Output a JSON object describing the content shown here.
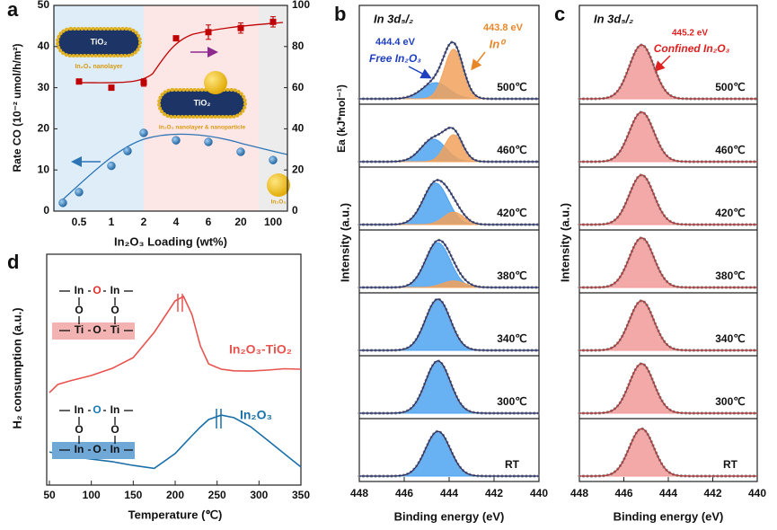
{
  "chart_data": [
    {
      "type": "dual-axis",
      "panel": "a",
      "categories": [
        null,
        "0.5",
        null,
        "1",
        null,
        "2",
        null,
        "4",
        null,
        "6",
        null,
        "20",
        null,
        "100"
      ],
      "series": [
        {
          "color": "#2e75b6",
          "marker": "circle",
          "values": [
            2,
            4.6,
            null,
            11,
            14.6,
            19,
            null,
            17.2,
            null,
            16.8,
            null,
            14.4,
            null,
            12.4
          ]
        },
        {
          "color": "#c00000",
          "marker": "square",
          "axis": "y2",
          "values": [
            null,
            63,
            null,
            60,
            null,
            62.5,
            null,
            84,
            null,
            87,
            null,
            89,
            null,
            92
          ],
          "errors": [
            null,
            1.2,
            null,
            1,
            null,
            1.8,
            null,
            1,
            null,
            3.5,
            null,
            2.5,
            null,
            2.5
          ]
        }
      ],
      "xlabel": "In₂O₃ Loading (wt%)",
      "ylabel": "Rate CO (10⁻² umol/h/m²)",
      "y2label": "Ea (kJ*mol⁻¹)",
      "ylim": [
        0,
        50
      ],
      "yticks": [
        0,
        10,
        20,
        30,
        40,
        50
      ],
      "y2lim": [
        0,
        100
      ],
      "y2ticks": [
        0,
        20,
        40,
        60,
        80,
        100
      ],
      "annotations": [
        "TiO₂",
        "In₂O₃ nanolayer",
        "TiO₂",
        "In₂O₃ nanolayer & nanoparticle",
        "In₂O₃"
      ]
    },
    {
      "type": "spectra",
      "panel": "b",
      "title": "In 3d₅/₂",
      "xlim": [
        448,
        440
      ],
      "xticks": [
        448,
        446,
        444,
        442,
        440
      ],
      "ylim": [
        0,
        100
      ],
      "xlabel": "Binding energy (eV)",
      "ylabel": "Intensity (a.u.)",
      "envelope_color": "#1f2a6b",
      "rows": [
        {
          "label": "500℃",
          "peaks": [
            {
              "center": 444.6,
              "height": 30,
              "width": 0.6,
              "color": "#4da3f0"
            },
            {
              "center": 443.8,
              "height": 92,
              "width": 0.42,
              "color": "#f2a25c"
            }
          ]
        },
        {
          "label": "460℃",
          "peaks": [
            {
              "center": 444.7,
              "height": 42,
              "width": 0.55,
              "color": "#4da3f0"
            },
            {
              "center": 443.8,
              "height": 50,
              "width": 0.4,
              "color": "#f2a25c"
            }
          ]
        },
        {
          "label": "420℃",
          "peaks": [
            {
              "center": 444.6,
              "height": 77,
              "width": 0.55,
              "color": "#4da3f0"
            },
            {
              "center": 443.8,
              "height": 23,
              "width": 0.45,
              "color": "#f2a25c"
            }
          ]
        },
        {
          "label": "380℃",
          "peaks": [
            {
              "center": 444.5,
              "height": 83,
              "width": 0.55,
              "color": "#4da3f0"
            },
            {
              "center": 443.8,
              "height": 12,
              "width": 0.5,
              "color": "#f2a25c"
            }
          ]
        },
        {
          "label": "340℃",
          "peaks": [
            {
              "center": 444.5,
              "height": 95,
              "width": 0.55,
              "color": "#4da3f0"
            }
          ]
        },
        {
          "label": "300℃",
          "peaks": [
            {
              "center": 444.5,
              "height": 97,
              "width": 0.55,
              "color": "#4da3f0"
            }
          ]
        },
        {
          "label": "RT",
          "peaks": [
            {
              "center": 444.5,
              "height": 83,
              "width": 0.55,
              "color": "#4da3f0"
            }
          ]
        }
      ],
      "annotations": [
        "444.4 eV",
        "Free In₂O₃",
        "443.8 eV",
        "In⁰"
      ]
    },
    {
      "type": "spectra",
      "panel": "c",
      "title": "In 3d₅/₂",
      "xlim": [
        448,
        440
      ],
      "xticks": [
        448,
        446,
        444,
        442,
        440
      ],
      "ylim": [
        0,
        100
      ],
      "xlabel": "Binding energy (eV)",
      "ylabel": "Intensity (a.u.)",
      "envelope_color": "#b03030",
      "rows": [
        {
          "label": "500℃",
          "peaks": [
            {
              "center": 445.2,
              "height": 100,
              "width": 0.55,
              "color": "#f29a9a"
            }
          ]
        },
        {
          "label": "460℃",
          "peaks": [
            {
              "center": 445.2,
              "height": 92,
              "width": 0.55,
              "color": "#f29a9a"
            }
          ]
        },
        {
          "label": "420℃",
          "peaks": [
            {
              "center": 445.2,
              "height": 92,
              "width": 0.55,
              "color": "#f29a9a"
            }
          ]
        },
        {
          "label": "380℃",
          "peaks": [
            {
              "center": 445.2,
              "height": 92,
              "width": 0.55,
              "color": "#f29a9a"
            }
          ]
        },
        {
          "label": "340℃",
          "peaks": [
            {
              "center": 445.2,
              "height": 92,
              "width": 0.55,
              "color": "#f29a9a"
            }
          ]
        },
        {
          "label": "300℃",
          "peaks": [
            {
              "center": 445.2,
              "height": 92,
              "width": 0.55,
              "color": "#f29a9a"
            }
          ]
        },
        {
          "label": "RT",
          "peaks": [
            {
              "center": 445.2,
              "height": 88,
              "width": 0.55,
              "color": "#f29a9a"
            }
          ]
        }
      ],
      "annotations": [
        "445.2 eV",
        "Confined In₂O₃"
      ]
    },
    {
      "type": "line",
      "panel": "d",
      "x": [
        50,
        60,
        75,
        100,
        125,
        150,
        175,
        200,
        210,
        220,
        230,
        240,
        255,
        270,
        290,
        310,
        330,
        350
      ],
      "series": [
        {
          "name": "In₂O₃-TiO₂",
          "color": "#e8534e",
          "values": [
            39.9,
            43.4,
            45,
            47.3,
            50.4,
            55,
            65.9,
            79.5,
            81.4,
            73.6,
            60.1,
            52.3,
            50,
            49.3,
            49.2,
            49.6,
            50.2,
            50
          ]
        },
        {
          "name": "In₂O₃",
          "color": "#1a6fa8",
          "values": [
            14.3,
            13.5,
            12.4,
            11.2,
            10.1,
            8.5,
            7.2,
            13.6,
            17.5,
            21.3,
            25,
            28.3,
            30.2,
            29.1,
            25.2,
            19.4,
            13.6,
            7.8
          ]
        }
      ],
      "xlim": [
        50,
        350
      ],
      "xticks": [
        50,
        100,
        150,
        200,
        250,
        300,
        350
      ],
      "ylim": [
        0,
        100
      ],
      "xlabel": "Temperature (℃)",
      "ylabel": "H₂ consumption (a.u.)",
      "structures": [
        {
          "atoms": [
            "In",
            "O",
            "In",
            "O",
            "O",
            "Ti",
            "O",
            "Ti"
          ],
          "color": "#e03030",
          "box": "#f4b3b3"
        },
        {
          "atoms": [
            "In",
            "O",
            "In",
            "O",
            "O",
            "In",
            "O",
            "In"
          ],
          "color": "#1a7ab8",
          "box": "#6fa8d6"
        }
      ]
    }
  ]
}
